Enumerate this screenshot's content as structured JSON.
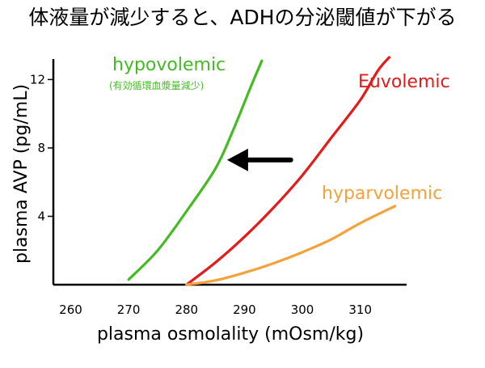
{
  "chart_data": {
    "type": "line",
    "title": "体液量が減少すると、ADHの分泌閾値が下がる",
    "xlabel": "plasma osmolality (mOsm/kg)",
    "ylabel": "plasma AVP (pg/mL)",
    "xlim": [
      257,
      318
    ],
    "ylim": [
      0,
      13.2
    ],
    "xticks": [
      260,
      270,
      280,
      290,
      300,
      310
    ],
    "yticks": [
      4,
      8,
      12
    ],
    "grid": false,
    "legend": "none",
    "series": [
      {
        "name": "hypovolemic",
        "sublabel": "(有効循環血漿量減少)",
        "color": "#44bb22",
        "points": [
          [
            270,
            0.3
          ],
          [
            275,
            2.0
          ],
          [
            280,
            4.3
          ],
          [
            285,
            6.8
          ],
          [
            288,
            9.0
          ],
          [
            291,
            11.5
          ],
          [
            293,
            13.1
          ]
        ]
      },
      {
        "name": "Euvolemic",
        "color": "#e31b1b",
        "points": [
          [
            280,
            0
          ],
          [
            285,
            1.3
          ],
          [
            290,
            2.8
          ],
          [
            295,
            4.5
          ],
          [
            300,
            6.4
          ],
          [
            305,
            8.6
          ],
          [
            310,
            10.8
          ],
          [
            313,
            12.5
          ],
          [
            315,
            13.3
          ]
        ]
      },
      {
        "name": "hyparvolemic",
        "color": "#f4a23a",
        "points": [
          [
            280,
            0
          ],
          [
            285,
            0.25
          ],
          [
            290,
            0.7
          ],
          [
            295,
            1.25
          ],
          [
            300,
            1.9
          ],
          [
            305,
            2.65
          ],
          [
            310,
            3.6
          ],
          [
            316,
            4.6
          ]
        ]
      }
    ],
    "annotations": [
      {
        "type": "arrow",
        "direction": "left",
        "from": [
          298,
          7.3
        ],
        "to": [
          287,
          7.3
        ]
      }
    ]
  }
}
